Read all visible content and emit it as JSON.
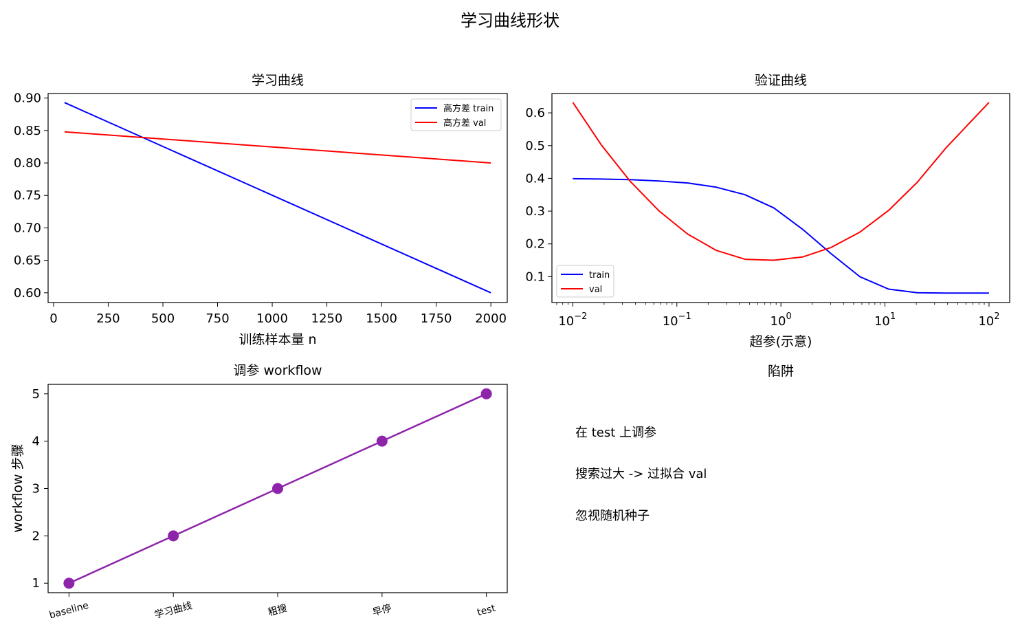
{
  "suptitle": "学习曲线形状",
  "chart_data": [
    {
      "type": "line",
      "title": "学习曲线",
      "xlabel": "训练样本量 n",
      "ylabel": "",
      "xlim": [
        -25,
        2075
      ],
      "ylim": [
        0.585,
        0.907
      ],
      "xticks": [
        0,
        250,
        500,
        750,
        1000,
        1250,
        1500,
        1750,
        2000
      ],
      "yticks": [
        0.6,
        0.65,
        0.7,
        0.75,
        0.8,
        0.85,
        0.9
      ],
      "ytick_labels": [
        "0.60",
        "0.65",
        "0.70",
        "0.75",
        "0.80",
        "0.85",
        "0.90"
      ],
      "legend_position": "upper right",
      "series": [
        {
          "name": "高方差 train",
          "color": "#0000ff",
          "x": [
            50,
            2000
          ],
          "y": [
            0.893,
            0.6
          ]
        },
        {
          "name": "高方差 val",
          "color": "#ff0000",
          "x": [
            50,
            2000
          ],
          "y": [
            0.848,
            0.8
          ]
        }
      ]
    },
    {
      "type": "line",
      "title": "验证曲线",
      "xlabel": "超参(示意)",
      "ylabel": "",
      "xscale": "log",
      "xlim": [
        0.0063,
        158
      ],
      "ylim": [
        0.021,
        0.659
      ],
      "xticks": [
        0.01,
        0.1,
        1,
        10,
        100
      ],
      "xtick_labels": [
        {
          "base": "10",
          "exp": "−2"
        },
        {
          "base": "10",
          "exp": "−1"
        },
        {
          "base": "10",
          "exp": "0"
        },
        {
          "base": "10",
          "exp": "1"
        },
        {
          "base": "10",
          "exp": "2"
        }
      ],
      "yticks": [
        0.1,
        0.2,
        0.3,
        0.4,
        0.5,
        0.6
      ],
      "ytick_labels": [
        "0.1",
        "0.2",
        "0.3",
        "0.4",
        "0.5",
        "0.6"
      ],
      "legend_position": "lower left",
      "series": [
        {
          "name": "train",
          "color": "#0000ff",
          "x": [
            0.01,
            0.0189,
            0.0356,
            0.0672,
            0.1269,
            0.2395,
            0.452,
            0.8532,
            1.6102,
            3.039,
            5.736,
            10.83,
            20.43,
            38.57,
            100
          ],
          "y": [
            0.399,
            0.398,
            0.396,
            0.392,
            0.386,
            0.373,
            0.35,
            0.31,
            0.245,
            0.17,
            0.1,
            0.062,
            0.051,
            0.05,
            0.05
          ]
        },
        {
          "name": "val",
          "color": "#ff0000",
          "x": [
            0.01,
            0.0189,
            0.0356,
            0.0672,
            0.1269,
            0.2395,
            0.452,
            0.8532,
            1.6102,
            3.039,
            5.736,
            10.83,
            20.43,
            38.57,
            100
          ],
          "y": [
            0.632,
            0.501,
            0.391,
            0.301,
            0.23,
            0.18,
            0.153,
            0.15,
            0.16,
            0.189,
            0.236,
            0.302,
            0.388,
            0.493,
            0.632
          ]
        }
      ]
    },
    {
      "type": "line",
      "title": "调参 workflow",
      "xlabel": "",
      "ylabel": "workflow 步骤",
      "categories": [
        "baseline",
        "学习曲线",
        "粗搜",
        "早停",
        "test"
      ],
      "ylim": [
        0.8,
        5.2
      ],
      "yticks": [
        1,
        2,
        3,
        4,
        5
      ],
      "ytick_labels": [
        "1",
        "2",
        "3",
        "4",
        "5"
      ],
      "series": [
        {
          "color": "#8e24aa",
          "values": [
            1,
            2,
            3,
            4,
            5
          ]
        }
      ]
    }
  ],
  "pitfalls": {
    "title": "陷阱",
    "items": [
      "在 test 上调参",
      "搜索过大 -> 过拟合 val",
      "忽视随机种子"
    ]
  }
}
